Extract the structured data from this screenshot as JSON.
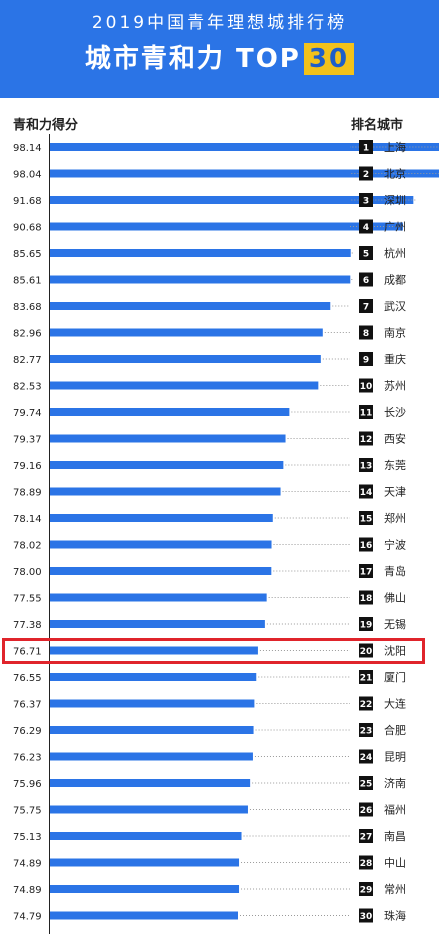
{
  "header": {
    "subtitle": "2019中国青年理想城排行榜",
    "title_text": "城市青和力 TOP",
    "title_highlight": "30"
  },
  "columns": {
    "score_label": "青和力得分",
    "rank_label": "排名",
    "city_label": "城市"
  },
  "colors": {
    "header_bg": "#2b74e6",
    "bar": "#2b74e6",
    "highlight_box": "#e0242b",
    "title_accent": "#f2c21b"
  },
  "chart_data": {
    "type": "bar",
    "orientation": "horizontal",
    "title": "城市青和力 TOP30",
    "subtitle": "2019中国青年理想城排行榜",
    "xlabel": "青和力得分",
    "ylabel": "城市",
    "highlighted_rank": 20,
    "rows": [
      {
        "rank": 1,
        "city": "上海",
        "score": 98.14
      },
      {
        "rank": 2,
        "city": "北京",
        "score": 98.04
      },
      {
        "rank": 3,
        "city": "深圳",
        "score": 91.68
      },
      {
        "rank": 4,
        "city": "广州",
        "score": 90.68
      },
      {
        "rank": 5,
        "city": "杭州",
        "score": 85.65
      },
      {
        "rank": 6,
        "city": "成都",
        "score": 85.61
      },
      {
        "rank": 7,
        "city": "武汉",
        "score": 83.68
      },
      {
        "rank": 8,
        "city": "南京",
        "score": 82.96
      },
      {
        "rank": 9,
        "city": "重庆",
        "score": 82.77
      },
      {
        "rank": 10,
        "city": "苏州",
        "score": 82.53
      },
      {
        "rank": 11,
        "city": "长沙",
        "score": 79.74
      },
      {
        "rank": 12,
        "city": "西安",
        "score": 79.37
      },
      {
        "rank": 13,
        "city": "东莞",
        "score": 79.16
      },
      {
        "rank": 14,
        "city": "天津",
        "score": 78.89
      },
      {
        "rank": 15,
        "city": "郑州",
        "score": 78.14
      },
      {
        "rank": 16,
        "city": "宁波",
        "score": 78.02
      },
      {
        "rank": 17,
        "city": "青岛",
        "score": 78.0
      },
      {
        "rank": 18,
        "city": "佛山",
        "score": 77.55
      },
      {
        "rank": 19,
        "city": "无锡",
        "score": 77.38
      },
      {
        "rank": 20,
        "city": "沈阳",
        "score": 76.71
      },
      {
        "rank": 21,
        "city": "厦门",
        "score": 76.55
      },
      {
        "rank": 22,
        "city": "大连",
        "score": 76.37
      },
      {
        "rank": 23,
        "city": "合肥",
        "score": 76.29
      },
      {
        "rank": 24,
        "city": "昆明",
        "score": 76.23
      },
      {
        "rank": 25,
        "city": "济南",
        "score": 75.96
      },
      {
        "rank": 26,
        "city": "福州",
        "score": 75.75
      },
      {
        "rank": 27,
        "city": "南昌",
        "score": 75.13
      },
      {
        "rank": 28,
        "city": "中山",
        "score": 74.89
      },
      {
        "rank": 29,
        "city": "常州",
        "score": 74.89
      },
      {
        "rank": 30,
        "city": "珠海",
        "score": 74.79
      }
    ]
  }
}
